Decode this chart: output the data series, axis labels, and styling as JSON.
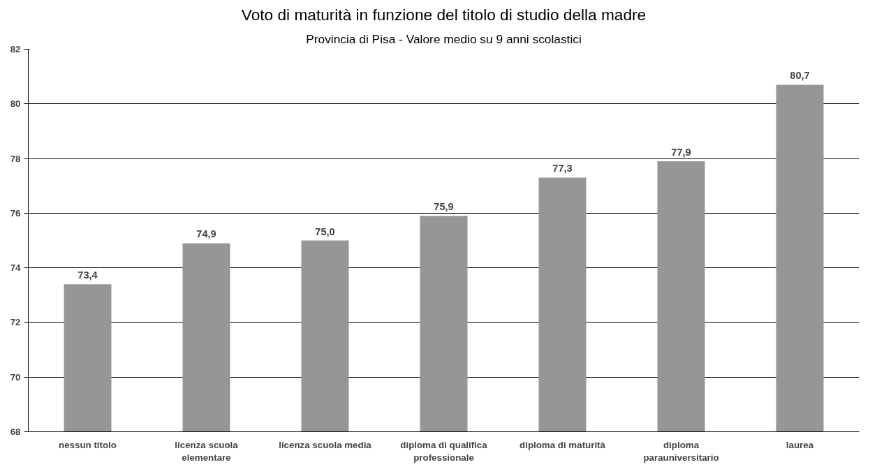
{
  "chart_data": {
    "type": "bar",
    "title": "Voto di maturità in funzione del titolo di studio della madre",
    "subtitle": "Provincia di Pisa - Valore medio su 9 anni scolastici",
    "categories": [
      "nessun titolo",
      "licenza scuola\nelementare",
      "licenza scuola media",
      "diploma di qualifica\nprofessionale",
      "diploma di maturità",
      "diploma\nparauniversitario",
      "laurea"
    ],
    "values": [
      73.4,
      74.9,
      75.0,
      75.9,
      77.3,
      77.9,
      80.7
    ],
    "value_labels": [
      "73,4",
      "74,9",
      "75,0",
      "75,9",
      "77,3",
      "77,9",
      "80,7"
    ],
    "color": "#969696",
    "ylim": [
      68,
      82
    ],
    "yticks": [
      68,
      70,
      72,
      74,
      76,
      78,
      80,
      82
    ],
    "grid": "y"
  }
}
